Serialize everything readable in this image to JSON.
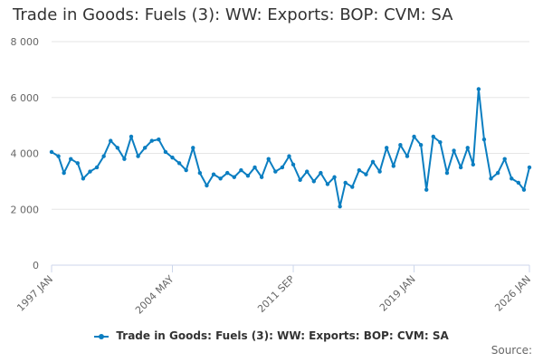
{
  "title": "Trade in Goods: Fuels (3): WW: Exports: BOP: CVM: SA",
  "source_label": "Source:",
  "chart_data": {
    "type": "line",
    "title": "Trade in Goods: Fuels (3): WW: Exports: BOP: CVM: SA",
    "xlabel": "",
    "ylabel": "",
    "x_range": [
      "1997-01",
      "2026-01"
    ],
    "ylim": [
      0,
      8000
    ],
    "y_ticks": [
      0,
      2000,
      4000,
      6000,
      8000
    ],
    "y_tick_labels": [
      "0",
      "2 000",
      "4 000",
      "6 000",
      "8 000"
    ],
    "x_ticks": [
      "1997-01",
      "2004-05",
      "2011-09",
      "2019-01",
      "2026-01"
    ],
    "x_tick_labels": [
      "1997 JAN",
      "2004 MAY",
      "2011 SEP",
      "2019 JAN",
      "2026 JAN"
    ],
    "grid": true,
    "legend_position": "bottom-center",
    "series": [
      {
        "name": "Trade in Goods: Fuels (3): WW: Exports: BOP: CVM: SA",
        "color": "#0b7ec1",
        "points": [
          [
            "1997-01",
            4050
          ],
          [
            "1997-06",
            3900
          ],
          [
            "1997-10",
            3300
          ],
          [
            "1998-03",
            3800
          ],
          [
            "1998-08",
            3650
          ],
          [
            "1998-12",
            3100
          ],
          [
            "1999-05",
            3350
          ],
          [
            "1999-10",
            3500
          ],
          [
            "2000-03",
            3900
          ],
          [
            "2000-08",
            4450
          ],
          [
            "2001-01",
            4200
          ],
          [
            "2001-06",
            3800
          ],
          [
            "2001-11",
            4600
          ],
          [
            "2002-04",
            3900
          ],
          [
            "2002-09",
            4200
          ],
          [
            "2003-02",
            4450
          ],
          [
            "2003-07",
            4500
          ],
          [
            "2003-12",
            4050
          ],
          [
            "2004-05",
            3850
          ],
          [
            "2004-10",
            3650
          ],
          [
            "2005-03",
            3400
          ],
          [
            "2005-08",
            4200
          ],
          [
            "2006-01",
            3300
          ],
          [
            "2006-06",
            2850
          ],
          [
            "2006-11",
            3250
          ],
          [
            "2007-04",
            3100
          ],
          [
            "2007-09",
            3300
          ],
          [
            "2008-02",
            3150
          ],
          [
            "2008-07",
            3400
          ],
          [
            "2008-12",
            3200
          ],
          [
            "2009-05",
            3500
          ],
          [
            "2009-10",
            3150
          ],
          [
            "2010-03",
            3800
          ],
          [
            "2010-08",
            3350
          ],
          [
            "2011-01",
            3500
          ],
          [
            "2011-06",
            3900
          ],
          [
            "2011-09",
            3600
          ],
          [
            "2012-02",
            3050
          ],
          [
            "2012-07",
            3350
          ],
          [
            "2012-12",
            3000
          ],
          [
            "2013-05",
            3300
          ],
          [
            "2013-10",
            2900
          ],
          [
            "2014-03",
            3150
          ],
          [
            "2014-07",
            2100
          ],
          [
            "2014-11",
            2950
          ],
          [
            "2015-04",
            2800
          ],
          [
            "2015-09",
            3400
          ],
          [
            "2016-02",
            3250
          ],
          [
            "2016-07",
            3700
          ],
          [
            "2016-12",
            3350
          ],
          [
            "2017-05",
            4200
          ],
          [
            "2017-10",
            3550
          ],
          [
            "2018-03",
            4300
          ],
          [
            "2018-08",
            3900
          ],
          [
            "2019-01",
            4600
          ],
          [
            "2019-06",
            4300
          ],
          [
            "2019-10",
            2700
          ],
          [
            "2020-03",
            4600
          ],
          [
            "2020-08",
            4400
          ],
          [
            "2021-01",
            3300
          ],
          [
            "2021-06",
            4100
          ],
          [
            "2021-11",
            3500
          ],
          [
            "2022-04",
            4200
          ],
          [
            "2022-08",
            3600
          ],
          [
            "2022-12",
            6300
          ],
          [
            "2023-04",
            4500
          ],
          [
            "2023-09",
            3100
          ],
          [
            "2024-02",
            3300
          ],
          [
            "2024-07",
            3800
          ],
          [
            "2024-12",
            3100
          ],
          [
            "2025-05",
            2950
          ],
          [
            "2025-09",
            2700
          ],
          [
            "2026-01",
            3500
          ]
        ]
      }
    ]
  }
}
